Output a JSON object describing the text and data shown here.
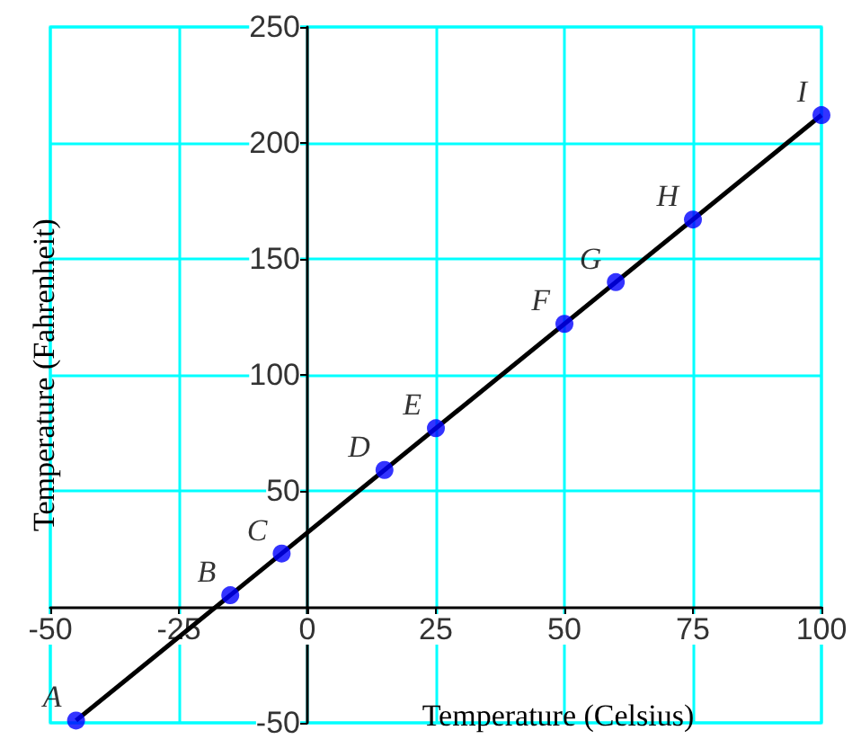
{
  "chart_data": {
    "type": "scatter",
    "xlabel": "Temperature (Celsius)",
    "ylabel": "Temperature (Fahrenheit)",
    "xlim": [
      -50,
      100
    ],
    "xticks": [
      -50,
      -25,
      0,
      25,
      50,
      75,
      100
    ],
    "ylim": [
      -50,
      250
    ],
    "yticks": [
      -50,
      50,
      100,
      150,
      200,
      250
    ],
    "grid": true,
    "marker": "circle",
    "series": [
      {
        "type": "line",
        "color": "#000000",
        "marker": "none",
        "x": [
          -45,
          100
        ],
        "values": [
          -49,
          212
        ]
      },
      {
        "color": "#0000ff",
        "x": [
          -45,
          -15,
          -5,
          15,
          25,
          50,
          60,
          75,
          100
        ],
        "values": [
          -49,
          5,
          23,
          59,
          77,
          122,
          140,
          167,
          212
        ]
      }
    ],
    "annotations": [
      {
        "text": "A",
        "x": -45,
        "y": -49
      },
      {
        "text": "B",
        "x": -15,
        "y": 5
      },
      {
        "text": "C",
        "x": -5,
        "y": 23
      },
      {
        "text": "D",
        "x": 15,
        "y": 59
      },
      {
        "text": "E",
        "x": 25,
        "y": 77
      },
      {
        "text": "F",
        "x": 50,
        "y": 122
      },
      {
        "text": "G",
        "x": 60,
        "y": 140
      },
      {
        "text": "H",
        "x": 75,
        "y": 167
      },
      {
        "text": "I",
        "x": 100,
        "y": 212
      }
    ]
  }
}
